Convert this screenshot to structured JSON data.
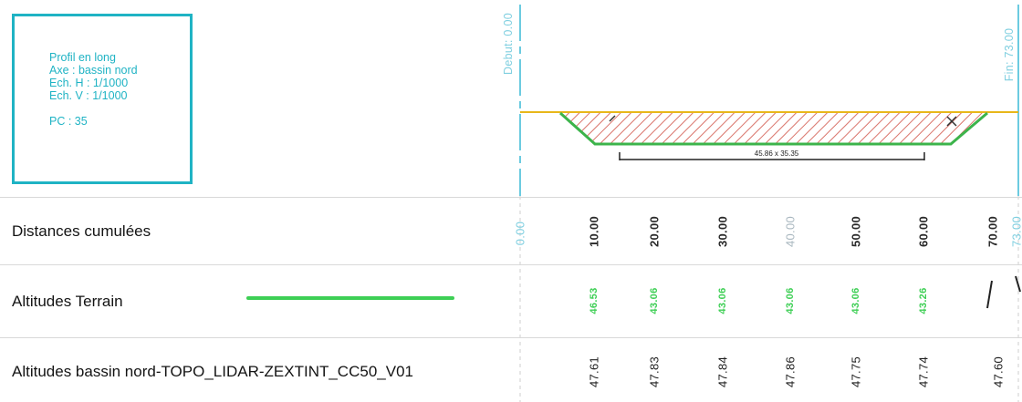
{
  "cartouche": {
    "lines": [
      "Profil en long",
      "Axe : bassin nord",
      "Ech. H : 1/1000",
      "Ech. V : 1/1000",
      "PC : 35"
    ]
  },
  "profile": {
    "start_label": "Debut: 0.00",
    "end_label": "Fin: 73.00",
    "dimension_label": "45.86 x 35.35",
    "colors": {
      "terrain": "#e8b71a",
      "bassin": "#3cb44b",
      "hatch": "#d9736a",
      "axis": "#6ccbe0"
    }
  },
  "rows": {
    "distances": {
      "label": "Distances cumulées",
      "values": [
        "0.00",
        "10.00",
        "20.00",
        "30.00",
        "40.00",
        "50.00",
        "60.00",
        "70.00",
        "73.00"
      ]
    },
    "terrain": {
      "label": "Altitudes Terrain",
      "values": [
        "46.53",
        "43.06",
        "43.06",
        "43.06",
        "43.06",
        "43.26"
      ]
    },
    "bassin": {
      "label": "Altitudes bassin nord-TOPO_LIDAR-ZEXTINT_CC50_V01",
      "values": [
        "47.61",
        "47.83",
        "47.84",
        "47.86",
        "47.75",
        "47.74",
        "47.60"
      ]
    }
  }
}
